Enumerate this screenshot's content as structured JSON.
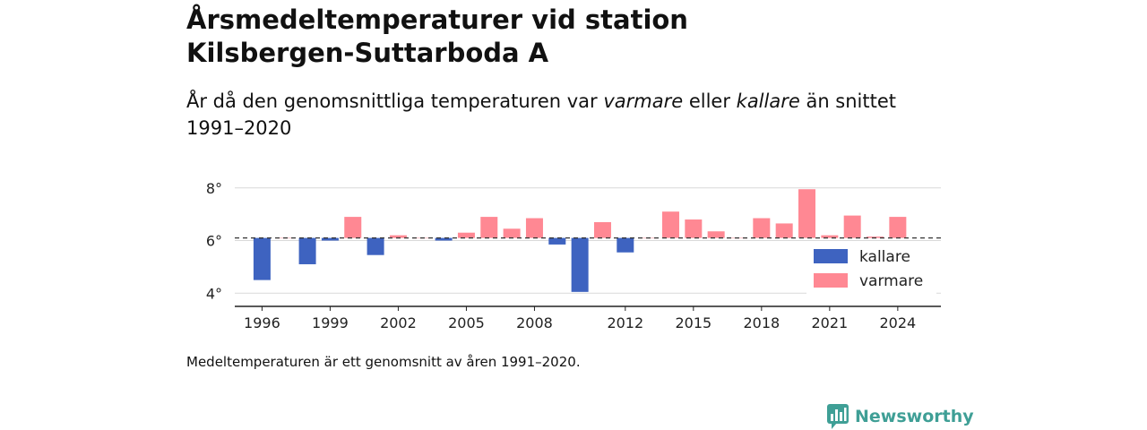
{
  "title": {
    "line1": "Årsmedeltemperaturer vid station",
    "line2": "Kilsbergen-Suttarboda A"
  },
  "subtitle": {
    "part1": "År då den genomsnittliga temperaturen var ",
    "em1": "varmare",
    "part2": " eller ",
    "em2": "kallare",
    "part3": " än snittet",
    "line2": "1991–2020"
  },
  "footnote": "Medeltemperaturen är ett genomsnitt av åren 1991–2020.",
  "brand": {
    "name": "Newsworthy",
    "color": "#3f9f96"
  },
  "chart_data": {
    "type": "bar",
    "baseline": 6.1,
    "ylim": [
      3.5,
      8.4
    ],
    "yticks": [
      4,
      6,
      8
    ],
    "ytick_labels": [
      "4°",
      "6°",
      "8°"
    ],
    "xlim": [
      1994.8,
      2025.9
    ],
    "xticks": [
      1996,
      1999,
      2002,
      2005,
      2008,
      2012,
      2015,
      2018,
      2021,
      2024
    ],
    "grid": true,
    "legend_position": "bottom-right",
    "series": [
      {
        "name": "kallare",
        "color": "#3e63c0"
      },
      {
        "name": "varmare",
        "color": "#ff8893"
      }
    ],
    "x": [
      1996,
      1997,
      1998,
      1999,
      2000,
      2001,
      2002,
      2003,
      2004,
      2005,
      2006,
      2007,
      2008,
      2009,
      2010,
      2011,
      2012,
      2013,
      2014,
      2015,
      2016,
      2017,
      2018,
      2019,
      2020,
      2021,
      2022,
      2023,
      2024
    ],
    "values": [
      4.5,
      6.1,
      5.1,
      6.0,
      6.9,
      5.45,
      6.2,
      6.1,
      6.0,
      6.3,
      6.9,
      6.45,
      6.85,
      5.85,
      4.05,
      6.7,
      5.55,
      6.1,
      7.1,
      6.8,
      6.35,
      6.1,
      6.85,
      6.65,
      7.95,
      6.2,
      6.95,
      6.15,
      6.9
    ]
  }
}
